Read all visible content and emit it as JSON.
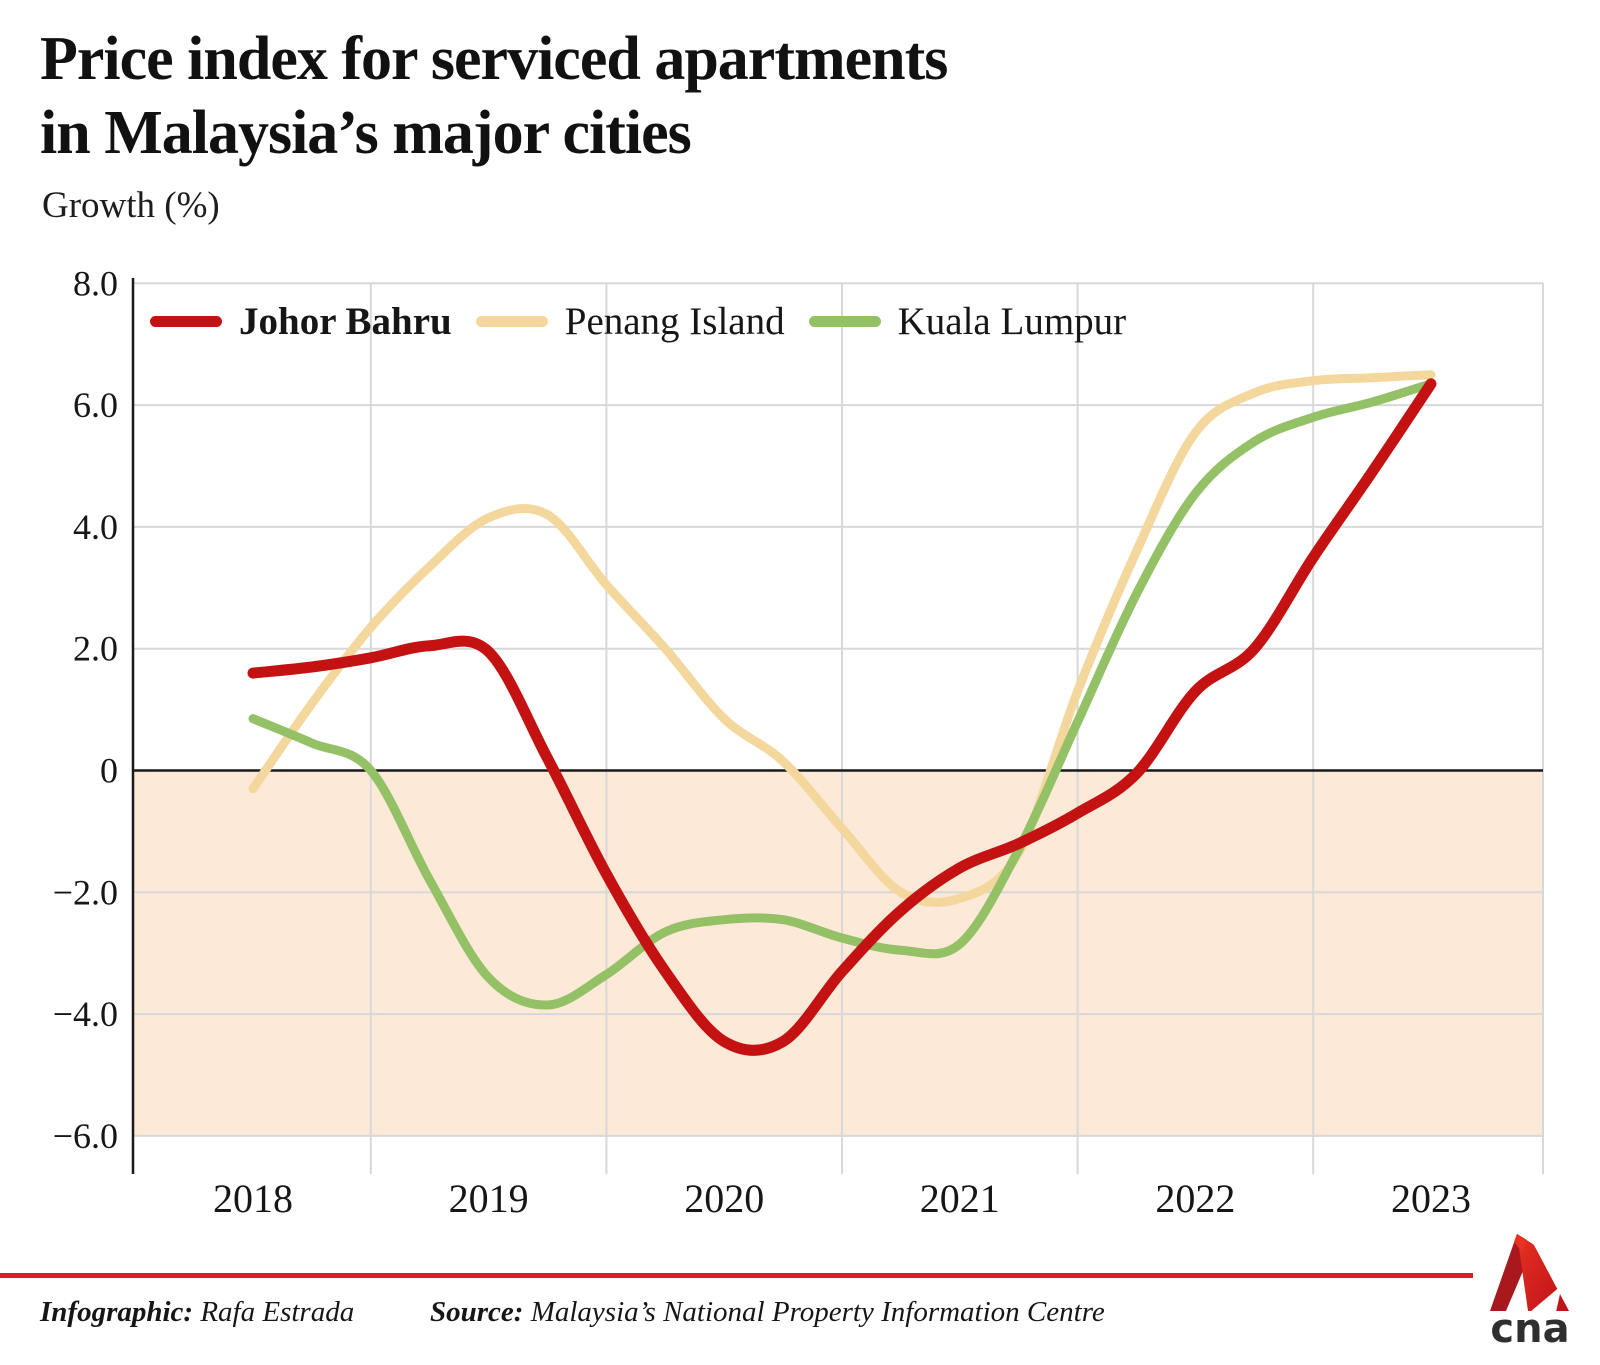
{
  "header": {
    "title_line1": "Price index for serviced apartments",
    "title_line2": "in Malaysia’s major cities",
    "subtitle": "Growth (%)"
  },
  "chart_data": {
    "type": "line",
    "title": "Price index for serviced apartments in Malaysia's major cities",
    "ylabel": "Growth (%)",
    "xlabel": "",
    "xlim": [
      2018,
      2023.47
    ],
    "ylim": [
      -6.8,
      8.0
    ],
    "grid": true,
    "legend_position": "top-left-inside",
    "negative_region_color": "#fce9d8",
    "gridline_color": "#d8d8d8",
    "zero_line_color": "#1a1a1a",
    "x": [
      2018,
      2018.25,
      2018.5,
      2018.75,
      2019,
      2019.25,
      2019.5,
      2019.75,
      2020,
      2020.25,
      2020.5,
      2020.75,
      2021,
      2021.25,
      2021.5,
      2021.75,
      2022,
      2022.25,
      2022.5,
      2022.75,
      2023
    ],
    "series": [
      {
        "name": "Johor Bahru",
        "color": "#c41212",
        "stroke_width": 11,
        "values": [
          1.6,
          1.7,
          1.85,
          2.05,
          1.95,
          0.2,
          -1.7,
          -3.3,
          -4.45,
          -4.45,
          -3.3,
          -2.3,
          -1.6,
          -1.2,
          -0.7,
          -0.05,
          1.3,
          2.0,
          3.5,
          4.9,
          6.35
        ]
      },
      {
        "name": "Penang Island",
        "color": "#f4d79d",
        "stroke_width": 9,
        "values": [
          -0.3,
          1.1,
          2.35,
          3.35,
          4.15,
          4.2,
          3.05,
          2.0,
          0.85,
          0.15,
          -0.95,
          -2.0,
          -2.1,
          -1.35,
          1.3,
          3.6,
          5.55,
          6.2,
          6.4,
          6.45,
          6.5
        ]
      },
      {
        "name": "Kuala Lumpur",
        "color": "#94c166",
        "stroke_width": 9,
        "values": [
          0.85,
          0.45,
          0.0,
          -1.8,
          -3.4,
          -3.85,
          -3.35,
          -2.65,
          -2.45,
          -2.45,
          -2.75,
          -2.95,
          -2.85,
          -1.3,
          0.8,
          2.9,
          4.55,
          5.4,
          5.8,
          6.05,
          6.35
        ]
      }
    ],
    "x_ticks": [
      "2018",
      "2019",
      "2020",
      "2021",
      "2022",
      "2023"
    ],
    "y_ticks": [
      {
        "v": 8,
        "label": "8.0"
      },
      {
        "v": 6,
        "label": "6.0"
      },
      {
        "v": 4,
        "label": "4.0"
      },
      {
        "v": 2,
        "label": "2.0"
      },
      {
        "v": 0,
        "label": "0"
      },
      {
        "v": -2,
        "label": "−2.0"
      },
      {
        "v": -4,
        "label": "−4.0"
      },
      {
        "v": -6,
        "label": "−6.0"
      }
    ]
  },
  "footer": {
    "infographic_label": "Infographic:",
    "infographic_value": "Rafa Estrada",
    "source_label": "Source:",
    "source_value": "Malaysia’s National Property Information Centre",
    "rule_color": "#d8231d"
  },
  "brand": {
    "logo_text": "cna"
  }
}
